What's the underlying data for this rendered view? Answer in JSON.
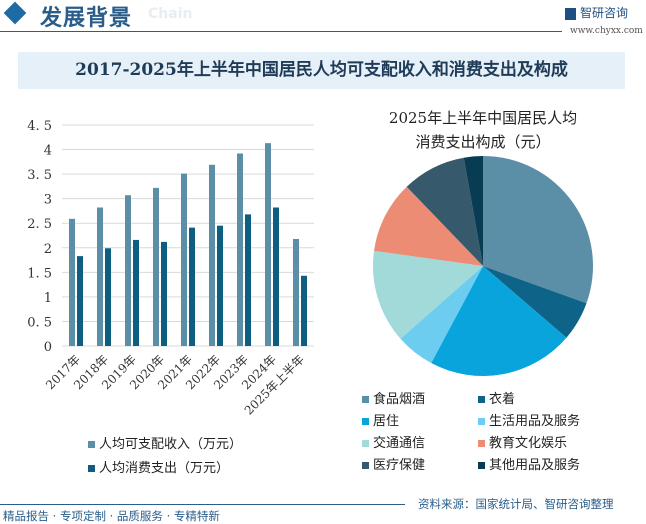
{
  "header": {
    "title": "发展背景",
    "subtitle_en": "Chain",
    "brand": "智研咨询",
    "url": "www.chyxx.com"
  },
  "main_title": "2017-2025年上半年中国居民人均可支配收入和消费支出及构成",
  "chart_data": [
    {
      "type": "bar",
      "categories": [
        "2017年",
        "2018年",
        "2019年",
        "2020年",
        "2021年",
        "2022年",
        "2023年",
        "2024年",
        "2025年上半年"
      ],
      "ylim": [
        0,
        4.5
      ],
      "yticks": [
        "0",
        "0.5",
        "1",
        "1.5",
        "2",
        "2.5",
        "3",
        "3.5",
        "4",
        "4.5"
      ],
      "grid": true,
      "legend": "bottom",
      "series": [
        {
          "name": "人均可支配收入（万元）",
          "color": "#5b8fa8",
          "values": [
            2.59,
            2.82,
            3.07,
            3.22,
            3.51,
            3.69,
            3.92,
            4.13,
            2.18
          ]
        },
        {
          "name": "人均消费支出（万元）",
          "color": "#0d5e80",
          "values": [
            1.83,
            1.99,
            2.16,
            2.12,
            2.41,
            2.45,
            2.68,
            2.82,
            1.43
          ]
        }
      ]
    },
    {
      "type": "pie",
      "title_lines": [
        "2025年上半年中国居民人均",
        "消费支出构成（元）"
      ],
      "legend": "bottom",
      "slices": [
        {
          "name": "食品烟酒",
          "value": 30.5,
          "color": "#5b8fa8"
        },
        {
          "name": "衣着",
          "value": 5.8,
          "color": "#0d6488"
        },
        {
          "name": "居住",
          "value": 21.5,
          "color": "#0aa4dc"
        },
        {
          "name": "生活用品及服务",
          "value": 5.7,
          "color": "#6ccdf0"
        },
        {
          "name": "交通通信",
          "value": 13.7,
          "color": "#a2d9d9"
        },
        {
          "name": "教育文化娱乐",
          "value": 10.6,
          "color": "#ec8c74"
        },
        {
          "name": "医疗保健",
          "value": 9.4,
          "color": "#37596c"
        },
        {
          "name": "其他用品及服务",
          "value": 2.8,
          "color": "#083c52"
        }
      ]
    }
  ],
  "footer": {
    "left": "精品报告 · 专项定制 · 品质服务 · 专精特新",
    "source": "资料来源：国家统计局、智研咨询整理"
  }
}
